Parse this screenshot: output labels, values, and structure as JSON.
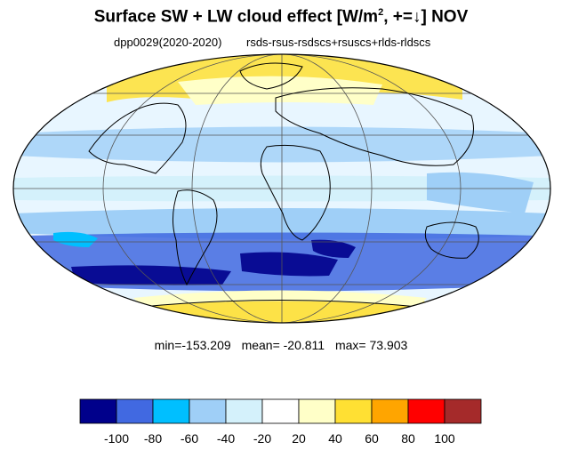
{
  "title": {
    "main": "Surface SW + LW cloud effect [W/m",
    "superscript": "2",
    "suffix": ", +=↓]  NOV"
  },
  "subtitle": {
    "left": "dpp0029(2020-2020)",
    "right": "rsds-rsus-rsdscs+rsuscs+rlds-rldscs"
  },
  "stats": {
    "min": "min=-153.209",
    "mean": "mean= -20.811",
    "max": "max=  73.903"
  },
  "map": {
    "projection": "mollweide",
    "ocean_color": "#e8f6ff",
    "land_stroke": "#000000"
  },
  "colorbar": {
    "colors": [
      "#00008b",
      "#4169e1",
      "#00bfff",
      "#9fcff7",
      "#d4f1fb",
      "#ffffff",
      "#ffffc8",
      "#ffe033",
      "#ffa500",
      "#ff0000",
      "#a52a2a"
    ],
    "labels": [
      "-100",
      "-80",
      "-60",
      "-40",
      "-20",
      "20",
      "40",
      "60",
      "80",
      "100"
    ]
  }
}
